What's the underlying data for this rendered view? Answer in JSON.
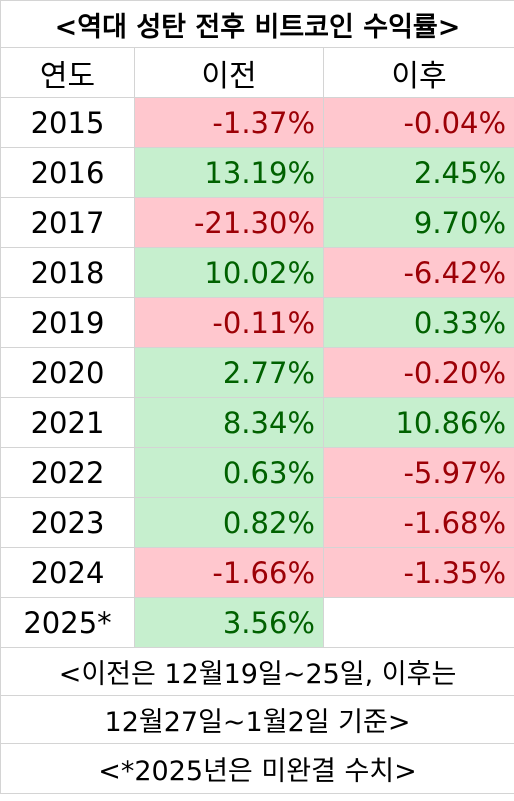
{
  "title": "<역대 성탄 전후 비트코인 수익률>",
  "headers": [
    "연도",
    "이전",
    "이후"
  ],
  "rows": [
    {
      "year": "2015",
      "before": "-1.37%",
      "after": "-0.04%",
      "before_sign": "neg",
      "after_sign": "neg"
    },
    {
      "year": "2016",
      "before": "13.19%",
      "after": "2.45%",
      "before_sign": "pos",
      "after_sign": "pos"
    },
    {
      "year": "2017",
      "before": "-21.30%",
      "after": "9.70%",
      "before_sign": "neg",
      "after_sign": "pos"
    },
    {
      "year": "2018",
      "before": "10.02%",
      "after": "-6.42%",
      "before_sign": "pos",
      "after_sign": "neg"
    },
    {
      "year": "2019",
      "before": "-0.11%",
      "after": "0.33%",
      "before_sign": "neg",
      "after_sign": "pos"
    },
    {
      "year": "2020",
      "before": "2.77%",
      "after": "-0.20%",
      "before_sign": "pos",
      "after_sign": "neg"
    },
    {
      "year": "2021",
      "before": "8.34%",
      "after": "10.86%",
      "before_sign": "pos",
      "after_sign": "pos"
    },
    {
      "year": "2022",
      "before": "0.63%",
      "after": "-5.97%",
      "before_sign": "pos",
      "after_sign": "neg"
    },
    {
      "year": "2023",
      "before": "0.82%",
      "after": "-1.68%",
      "before_sign": "pos",
      "after_sign": "neg"
    },
    {
      "year": "2024",
      "before": "-1.66%",
      "after": "-1.35%",
      "before_sign": "neg",
      "after_sign": "neg"
    },
    {
      "year": "2025*",
      "before": "3.56%",
      "after": "",
      "before_sign": "pos",
      "after_sign": "empty"
    }
  ],
  "note_lines": [
    "<이전은 12월19일~25일, 이후는",
    "12월27일~1월2일 기준>"
  ],
  "footnote": "<*2025년은 미완결 수치>",
  "colors": {
    "positive_fill": "#c6efce",
    "positive_text": "#006100",
    "negative_fill": "#ffc7ce",
    "negative_text": "#9c0006",
    "border": "#d4d4d4"
  }
}
